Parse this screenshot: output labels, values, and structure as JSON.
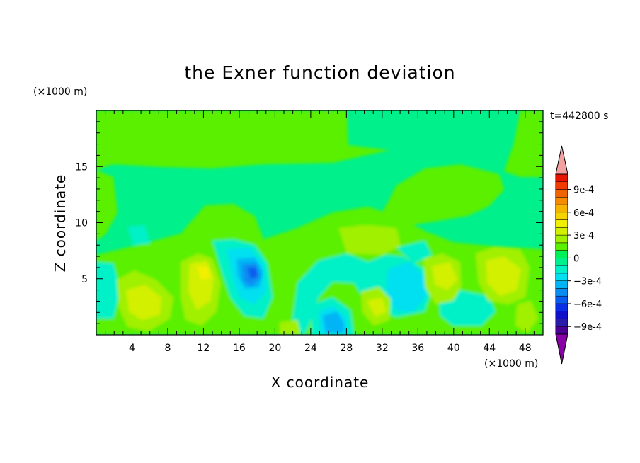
{
  "chart_data": {
    "type": "heatmap",
    "title": "the Exner function deviation",
    "xlabel": "X coordinate",
    "ylabel": "Z coordinate",
    "x_unit": "(×1000 m)",
    "y_unit": "(×1000 m)",
    "time_label": "t=442800 s",
    "xlim": [
      0,
      50
    ],
    "ylim": [
      0,
      20
    ],
    "x_ticks": [
      4,
      8,
      12,
      16,
      20,
      24,
      28,
      32,
      36,
      40,
      44,
      48
    ],
    "x_tick_labels": [
      "4",
      "8",
      "12",
      "16",
      "20",
      "24",
      "28",
      "32",
      "36",
      "40",
      "44",
      "48"
    ],
    "y_ticks": [
      5,
      10,
      15
    ],
    "y_tick_labels": [
      "5",
      "10",
      "15"
    ],
    "colorbar": {
      "levels": [
        -0.0011,
        -0.001,
        -0.0009,
        -0.0008,
        -0.0007,
        -0.0006,
        -0.0005,
        -0.0004,
        -0.0003,
        -0.0002,
        -0.0001,
        0,
        0.0001,
        0.0002,
        0.0003,
        0.0004,
        0.0005,
        0.0006,
        0.0007,
        0.0008,
        0.0009,
        0.001,
        0.0011
      ],
      "colors": [
        "#8a00a8",
        "#4b0094",
        "#2a1aa8",
        "#1010c8",
        "#0a2ee6",
        "#0a5cf0",
        "#0a8cf0",
        "#00b4f5",
        "#00e0f0",
        "#00f0c8",
        "#00f08c",
        "#00f05a",
        "#5af000",
        "#a0f000",
        "#d2f000",
        "#f0f000",
        "#f5d200",
        "#f5b400",
        "#f58c00",
        "#f06400",
        "#f03c00",
        "#e61400",
        "#f5a0a0"
      ],
      "tick_values": [
        0.0009,
        0.0006,
        0.0003,
        0,
        -0.0003,
        -0.0006,
        -0.0009
      ],
      "tick_labels": [
        "9e-4",
        "6e-4",
        "3e-4",
        "0",
        "−3e-4",
        "−6e-4",
        "−9e-4"
      ]
    },
    "grid": false
  }
}
